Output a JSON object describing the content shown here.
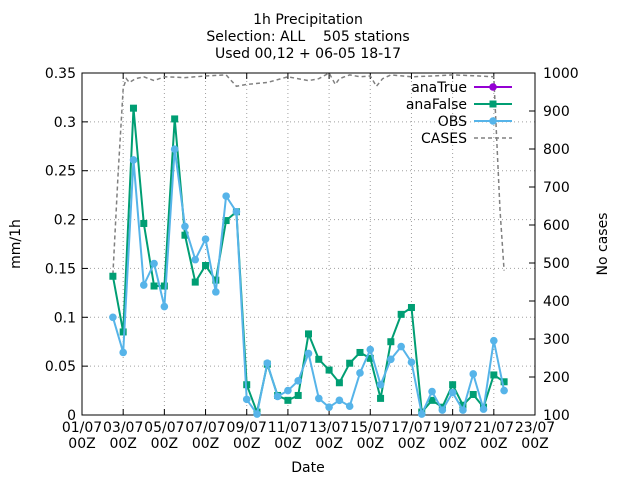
{
  "chart_data": {
    "type": "line",
    "title_lines": [
      "1h Precipitation",
      "Selection: ALL    505 stations",
      "Used 00,12 + 06-05 18-17"
    ],
    "xlabel": "Date",
    "ylabel": "mm/1h",
    "y2label": "No cases",
    "ylim": [
      0,
      0.35
    ],
    "y2lim": [
      100,
      1000
    ],
    "xlim": [
      0,
      22
    ],
    "yticks": [
      "0",
      "0.05",
      "0.1",
      "0.15",
      "0.2",
      "0.25",
      "0.3",
      "0.35"
    ],
    "y2ticks": [
      "100",
      "200",
      "300",
      "400",
      "500",
      "600",
      "700",
      "800",
      "900",
      "1000"
    ],
    "xticks": [
      {
        "date": "01/07",
        "hour": "00Z"
      },
      {
        "date": "03/07",
        "hour": "00Z"
      },
      {
        "date": "05/07",
        "hour": "00Z"
      },
      {
        "date": "07/07",
        "hour": "00Z"
      },
      {
        "date": "09/07",
        "hour": "00Z"
      },
      {
        "date": "11/07",
        "hour": "00Z"
      },
      {
        "date": "13/07",
        "hour": "00Z"
      },
      {
        "date": "15/07",
        "hour": "00Z"
      },
      {
        "date": "17/07",
        "hour": "00Z"
      },
      {
        "date": "19/07",
        "hour": "00Z"
      },
      {
        "date": "21/07",
        "hour": "00Z"
      },
      {
        "date": "23/07",
        "hour": "00Z"
      }
    ],
    "grid": true,
    "legend": "top-right",
    "series": [
      {
        "name": "anaTrue",
        "color": "#9400d3",
        "style": "solid",
        "marker": "circle",
        "axis": "y",
        "x": [],
        "values": []
      },
      {
        "name": "anaFalse",
        "color": "#009e73",
        "style": "solid",
        "marker": "square",
        "axis": "y",
        "x": [
          1.5,
          2.0,
          2.5,
          3.0,
          3.5,
          4.0,
          4.5,
          5.0,
          5.5,
          6.0,
          6.5,
          7.0,
          7.5,
          8.0,
          8.5,
          9.0,
          9.5,
          10.0,
          10.5,
          11.0,
          11.5,
          12.0,
          12.5,
          13.0,
          13.5,
          14.0,
          14.5,
          15.0,
          15.5,
          16.0,
          16.5,
          17.0,
          17.5,
          18.0,
          18.5,
          19.0,
          19.5,
          20.0,
          20.5
        ],
        "values": [
          0.142,
          0.085,
          0.314,
          0.196,
          0.132,
          0.132,
          0.303,
          0.184,
          0.136,
          0.153,
          0.138,
          0.199,
          0.208,
          0.031,
          0.003,
          0.052,
          0.02,
          0.015,
          0.02,
          0.083,
          0.057,
          0.046,
          0.033,
          0.053,
          0.064,
          0.058,
          0.017,
          0.075,
          0.103,
          0.11,
          0.003,
          0.015,
          0.008,
          0.031,
          0.01,
          0.021,
          0.008,
          0.041,
          0.034
        ]
      },
      {
        "name": "OBS",
        "color": "#56b4e9",
        "style": "solid",
        "marker": "circle",
        "axis": "y",
        "x": [
          1.5,
          2.0,
          2.5,
          3.0,
          3.5,
          4.0,
          4.5,
          5.0,
          5.5,
          6.0,
          6.5,
          7.0,
          7.5,
          8.0,
          8.5,
          9.0,
          9.5,
          10.0,
          10.5,
          11.0,
          11.5,
          12.0,
          12.5,
          13.0,
          13.5,
          14.0,
          14.5,
          15.0,
          15.5,
          16.0,
          16.5,
          17.0,
          17.5,
          18.0,
          18.5,
          19.0,
          19.5,
          20.0,
          20.5
        ],
        "values": [
          0.1,
          0.064,
          0.261,
          0.133,
          0.155,
          0.111,
          0.272,
          0.193,
          0.159,
          0.18,
          0.126,
          0.224,
          0.208,
          0.016,
          0.001,
          0.053,
          0.019,
          0.025,
          0.035,
          0.063,
          0.017,
          0.008,
          0.015,
          0.009,
          0.043,
          0.067,
          0.031,
          0.057,
          0.07,
          0.054,
          0.001,
          0.024,
          0.005,
          0.023,
          0.005,
          0.042,
          0.006,
          0.076,
          0.025
        ]
      },
      {
        "name": "CASES",
        "color": "#808080",
        "style": "dashed",
        "marker": "none",
        "axis": "y2",
        "x": [
          1.5,
          1.75,
          2.0,
          2.15,
          2.3,
          2.6,
          3.0,
          3.5,
          4.0,
          5.0,
          6.0,
          7.0,
          7.5,
          8.0,
          9.0,
          10.0,
          11.0,
          11.5,
          12.0,
          12.3,
          12.5,
          13.0,
          13.5,
          14.0,
          14.3,
          14.6,
          15.0,
          16.0,
          17.0,
          18.0,
          19.0,
          20.0,
          20.3,
          20.5
        ],
        "values": [
          470,
          730,
          960,
          985,
          975,
          985,
          990,
          980,
          990,
          988,
          992,
          995,
          965,
          970,
          975,
          990,
          980,
          985,
          1000,
          970,
          985,
          995,
          990,
          992,
          965,
          985,
          995,
          990,
          992,
          995,
          993,
          990,
          640,
          480
        ]
      }
    ]
  }
}
